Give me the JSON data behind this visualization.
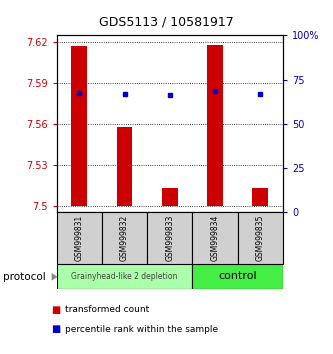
{
  "title": "GDS5113 / 10581917",
  "samples": [
    "GSM999831",
    "GSM999832",
    "GSM999833",
    "GSM999834",
    "GSM999835"
  ],
  "bar_bottoms": [
    7.5,
    7.5,
    7.5,
    7.5,
    7.5
  ],
  "bar_tops": [
    7.617,
    7.558,
    7.513,
    7.618,
    7.513
  ],
  "percentile_values": [
    7.583,
    7.582,
    7.581,
    7.584,
    7.582
  ],
  "ylim_left": [
    7.495,
    7.625
  ],
  "ylim_right": [
    0,
    100
  ],
  "yticks_left": [
    7.5,
    7.53,
    7.56,
    7.59,
    7.62
  ],
  "yticks_right": [
    0,
    25,
    50,
    75,
    100
  ],
  "ytick_labels_left": [
    "7.5",
    "7.53",
    "7.56",
    "7.59",
    "7.62"
  ],
  "ytick_labels_right": [
    "0",
    "25",
    "50",
    "75",
    "100%"
  ],
  "bar_color": "#cc0000",
  "dot_color": "#0000cc",
  "group1_label": "Grainyhead-like 2 depletion",
  "group2_label": "control",
  "group1_color": "#aaffaa",
  "group2_color": "#44ee44",
  "protocol_label": "protocol",
  "legend_red_label": "transformed count",
  "legend_blue_label": "percentile rank within the sample",
  "tick_label_color_left": "#cc0000",
  "tick_label_color_right": "#0000cc",
  "bar_width": 0.35
}
